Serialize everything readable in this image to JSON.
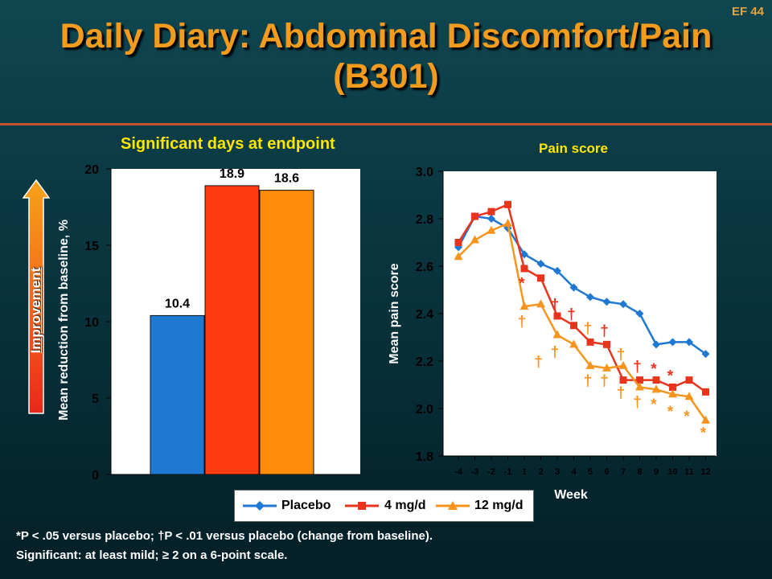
{
  "slide": {
    "code": "EF 44",
    "title_line1": "Daily Diary: Abdominal Discomfort/Pain",
    "title_line2": "(B301)"
  },
  "arrow": {
    "label": "Improvement"
  },
  "footnotes": {
    "line1": "*P < .05 versus placebo; †P < .01 versus placebo (change from baseline).",
    "line2": "Significant: at least mild; ≥ 2 on a 6-point scale."
  },
  "legend": {
    "items": [
      {
        "label": "Placebo",
        "color": "#1f78d1",
        "marker": "diamond"
      },
      {
        "label": "4 mg/d",
        "color": "#e8341c",
        "marker": "square"
      },
      {
        "label": "12 mg/d",
        "color": "#f7941d",
        "marker": "triangle"
      }
    ]
  },
  "chart_data": [
    {
      "type": "bar",
      "title": "Significant days at endpoint",
      "ylabel": "Mean reduction from baseline, %",
      "ylim": [
        0,
        20
      ],
      "yticks": [
        0,
        5,
        10,
        15,
        20
      ],
      "values": [
        10.4,
        18.9,
        18.6
      ],
      "value_labels": [
        "10.4",
        "18.9",
        "18.6"
      ],
      "colors": [
        "#1f78d1",
        "#ff3b12",
        "#ff8c0a"
      ]
    },
    {
      "type": "line",
      "title": "Pain score",
      "xlabel": "Week",
      "ylabel": "Mean pain score",
      "ylim": [
        1.8,
        3.0
      ],
      "yticks": [
        1.8,
        2.0,
        2.2,
        2.4,
        2.6,
        2.8,
        3.0
      ],
      "ytick_labels": [
        "1.8",
        "2.0",
        "2.2",
        "2.4",
        "2.6",
        "2.8",
        "3.0"
      ],
      "x": [
        "-4",
        "-3",
        "-2",
        "-1",
        "1",
        "2",
        "3",
        "4",
        "5",
        "6",
        "7",
        "8",
        "9",
        "10",
        "11",
        "12"
      ],
      "series": [
        {
          "name": "Placebo",
          "color": "#1f78d1",
          "marker": "diamond",
          "values": [
            2.68,
            2.81,
            2.8,
            2.76,
            2.65,
            2.61,
            2.58,
            2.51,
            2.47,
            2.45,
            2.44,
            2.4,
            2.27,
            2.28,
            2.28,
            2.23
          ]
        },
        {
          "name": "4 mg/d",
          "color": "#e8341c",
          "marker": "square",
          "values": [
            2.7,
            2.81,
            2.83,
            2.86,
            2.59,
            2.55,
            2.39,
            2.35,
            2.28,
            2.27,
            2.12,
            2.12,
            2.12,
            2.09,
            2.12,
            2.07
          ]
        },
        {
          "name": "12 mg/d",
          "color": "#f7941d",
          "marker": "triangle",
          "values": [
            2.64,
            2.71,
            2.75,
            2.78,
            2.43,
            2.44,
            2.31,
            2.27,
            2.18,
            2.17,
            2.18,
            2.09,
            2.08,
            2.06,
            2.05,
            1.95
          ]
        }
      ],
      "annotations": [
        {
          "text": "*",
          "color": "#e8341c",
          "x": "1",
          "y": 2.53
        },
        {
          "text": "†",
          "color": "#e8341c",
          "x": "3",
          "y": 2.44
        },
        {
          "text": "†",
          "color": "#e8341c",
          "x": "4",
          "y": 2.4
        },
        {
          "text": "†",
          "color": "#e8341c",
          "x": "6",
          "y": 2.33
        },
        {
          "text": "†",
          "color": "#e8341c",
          "x": "8",
          "y": 2.18
        },
        {
          "text": "*",
          "color": "#e8341c",
          "x": "9",
          "y": 2.17
        },
        {
          "text": "*",
          "color": "#e8341c",
          "x": "10",
          "y": 2.14
        },
        {
          "text": "†",
          "color": "#f7941d",
          "x": "1",
          "y": 2.37
        },
        {
          "text": "†",
          "color": "#f7941d",
          "x": "3",
          "y": 2.24
        },
        {
          "text": "†",
          "color": "#f7941d",
          "x": "5",
          "y": 2.34
        },
        {
          "text": "†",
          "color": "#f7941d",
          "x": "2",
          "y": 2.2
        },
        {
          "text": "†",
          "color": "#f7941d",
          "x": "7",
          "y": 2.23
        },
        {
          "text": "†",
          "color": "#f7941d",
          "x": "5",
          "y": 2.12
        },
        {
          "text": "†",
          "color": "#f7941d",
          "x": "6",
          "y": 2.12
        },
        {
          "text": "†",
          "color": "#f7941d",
          "x": "7",
          "y": 2.07
        },
        {
          "text": "†",
          "color": "#f7941d",
          "x": "8",
          "y": 2.03
        },
        {
          "text": "*",
          "color": "#f7941d",
          "x": "9",
          "y": 2.02
        },
        {
          "text": "*",
          "color": "#f7941d",
          "x": "10",
          "y": 1.99
        },
        {
          "text": "*",
          "color": "#f7941d",
          "x": "11",
          "y": 1.97
        },
        {
          "text": "*",
          "color": "#f7941d",
          "x": "12",
          "y": 1.9
        }
      ]
    }
  ]
}
